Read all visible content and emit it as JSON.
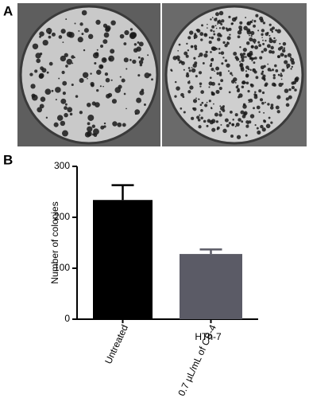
{
  "panels": [
    "A",
    "B"
  ],
  "chart_data": {
    "type": "bar",
    "xlabel": "HTh-7",
    "ylabel": "Number of colonies",
    "categories": [
      "Untreated",
      "0.7 µL/mL of CB-4"
    ],
    "values": [
      234,
      128
    ],
    "errors": [
      29,
      9
    ],
    "colors": [
      "#000000",
      "#5b5b66"
    ],
    "ylim": [
      0,
      300
    ],
    "yticks": [
      0,
      100,
      200,
      300
    ]
  }
}
